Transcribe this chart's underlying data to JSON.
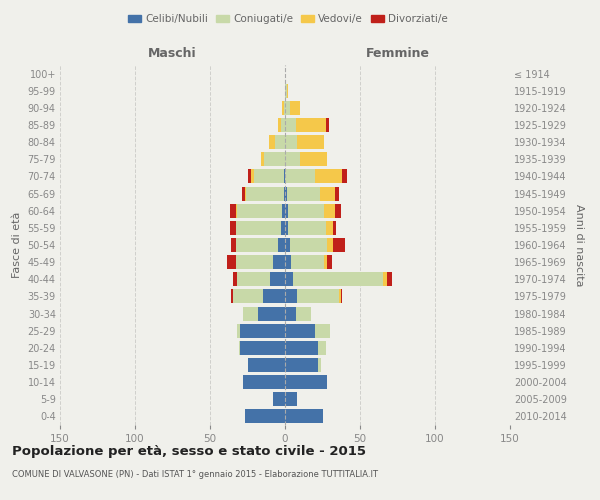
{
  "age_groups": [
    "0-4",
    "5-9",
    "10-14",
    "15-19",
    "20-24",
    "25-29",
    "30-34",
    "35-39",
    "40-44",
    "45-49",
    "50-54",
    "55-59",
    "60-64",
    "65-69",
    "70-74",
    "75-79",
    "80-84",
    "85-89",
    "90-94",
    "95-99",
    "100+"
  ],
  "birth_years": [
    "2010-2014",
    "2005-2009",
    "2000-2004",
    "1995-1999",
    "1990-1994",
    "1985-1989",
    "1980-1984",
    "1975-1979",
    "1970-1974",
    "1965-1969",
    "1960-1964",
    "1955-1959",
    "1950-1954",
    "1945-1949",
    "1940-1944",
    "1935-1939",
    "1930-1934",
    "1925-1929",
    "1920-1924",
    "1915-1919",
    "≤ 1914"
  ],
  "male": {
    "celibi": [
      27,
      8,
      28,
      25,
      30,
      30,
      18,
      15,
      10,
      8,
      5,
      3,
      2,
      1,
      1,
      0,
      0,
      0,
      0,
      0,
      0
    ],
    "coniugati": [
      0,
      0,
      0,
      0,
      1,
      2,
      10,
      20,
      22,
      25,
      28,
      30,
      30,
      25,
      20,
      14,
      7,
      3,
      1,
      0,
      0
    ],
    "vedovi": [
      0,
      0,
      0,
      0,
      0,
      0,
      0,
      0,
      0,
      0,
      0,
      0,
      1,
      1,
      2,
      2,
      4,
      2,
      1,
      0,
      0
    ],
    "divorziati": [
      0,
      0,
      0,
      0,
      0,
      0,
      0,
      1,
      3,
      6,
      3,
      4,
      4,
      2,
      2,
      0,
      0,
      0,
      0,
      0,
      0
    ]
  },
  "female": {
    "nubili": [
      25,
      8,
      28,
      22,
      22,
      20,
      7,
      8,
      5,
      4,
      3,
      2,
      2,
      1,
      0,
      0,
      0,
      0,
      0,
      0,
      0
    ],
    "coniugate": [
      0,
      0,
      0,
      2,
      5,
      10,
      10,
      28,
      60,
      22,
      25,
      25,
      24,
      22,
      20,
      10,
      8,
      7,
      3,
      1,
      0
    ],
    "vedove": [
      0,
      0,
      0,
      0,
      0,
      0,
      0,
      1,
      3,
      2,
      4,
      5,
      7,
      10,
      18,
      18,
      18,
      20,
      7,
      1,
      0
    ],
    "divorziate": [
      0,
      0,
      0,
      0,
      0,
      0,
      0,
      1,
      3,
      3,
      8,
      2,
      4,
      3,
      3,
      0,
      0,
      2,
      0,
      0,
      0
    ]
  },
  "colors": {
    "celibi": "#4472a8",
    "coniugati": "#c8d9a8",
    "vedovi": "#f5c84a",
    "divorziati": "#c0201a"
  },
  "xlim": 150,
  "title": "Popolazione per età, sesso e stato civile - 2015",
  "subtitle": "COMUNE DI VALVASONE (PN) - Dati ISTAT 1° gennaio 2015 - Elaborazione TUTTITALIA.IT",
  "ylabel_left": "Fasce di età",
  "ylabel_right": "Anni di nascita",
  "xlabel_male": "Maschi",
  "xlabel_female": "Femmine",
  "background_color": "#f0f0eb",
  "grid_color": "#d0d0cc",
  "tick_color": "#888888",
  "label_color": "#666666"
}
